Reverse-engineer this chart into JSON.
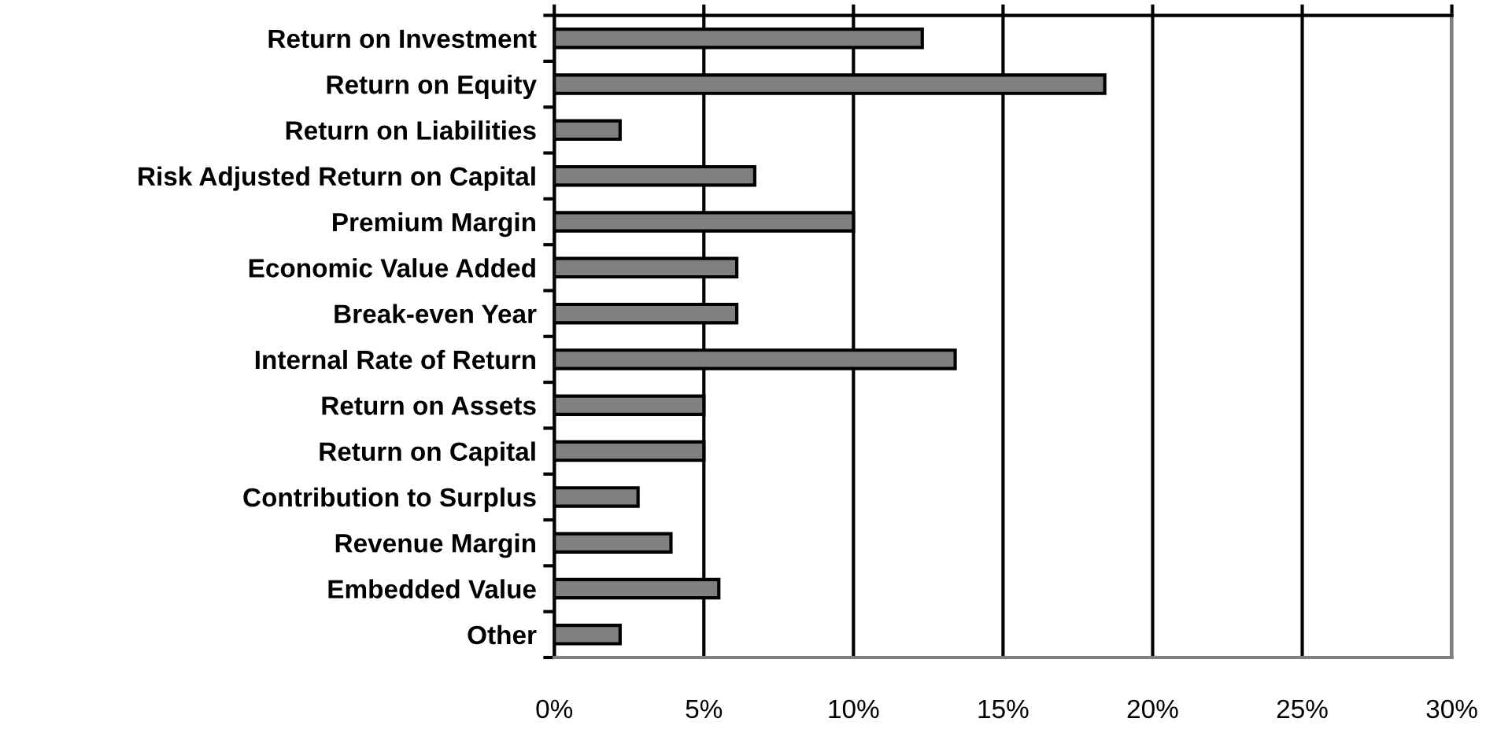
{
  "chart_data": {
    "type": "bar",
    "orientation": "horizontal",
    "categories": [
      "Return on Investment",
      "Return on Equity",
      "Return on Liabilities",
      "Risk Adjusted Return on Capital",
      "Premium Margin",
      "Economic Value Added",
      "Break-even Year",
      "Internal Rate of Return",
      "Return on Assets",
      "Return on Capital",
      "Contribution to Surplus",
      "Revenue Margin",
      "Embedded Value",
      "Other"
    ],
    "values": [
      12.3,
      18.4,
      2.2,
      6.7,
      10.0,
      6.1,
      6.1,
      13.4,
      5.0,
      5.0,
      2.8,
      3.9,
      5.5,
      2.2
    ],
    "color": "#808080",
    "xlim": [
      0,
      30
    ],
    "xticks": [
      {
        "value": 0,
        "label": "0%"
      },
      {
        "value": 5,
        "label": "5%"
      },
      {
        "value": 10,
        "label": "10%"
      },
      {
        "value": 15,
        "label": "15%"
      },
      {
        "value": 20,
        "label": "20%"
      },
      {
        "value": 25,
        "label": "25%"
      },
      {
        "value": 30,
        "label": "30%"
      }
    ],
    "grid": "x"
  }
}
